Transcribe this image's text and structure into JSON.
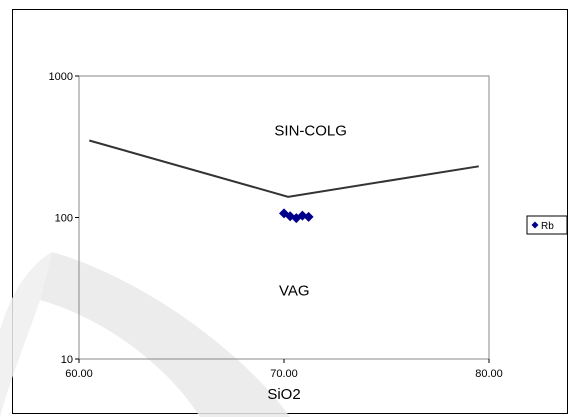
{
  "chart_data": {
    "type": "scatter",
    "xlabel": "SiO2",
    "ylabel": "",
    "xlim": [
      60,
      80
    ],
    "ylim": [
      10,
      1000
    ],
    "yscale": "log",
    "grid": false,
    "legend_position": "right",
    "x_ticks": [
      "60.00",
      "70.00",
      "80.00"
    ],
    "y_ticks": [
      "10",
      "100",
      "1000"
    ],
    "x_tick_values": [
      60,
      70,
      80
    ],
    "y_tick_values": [
      10,
      100,
      1000
    ],
    "series": [
      {
        "name": "Rb",
        "marker": "diamond",
        "color": "#00008B",
        "points": [
          {
            "x": 70.0,
            "y": 107
          },
          {
            "x": 70.3,
            "y": 102
          },
          {
            "x": 70.6,
            "y": 99
          },
          {
            "x": 70.9,
            "y": 103
          },
          {
            "x": 71.2,
            "y": 101
          }
        ]
      }
    ],
    "boundary_line": {
      "color": "#333333",
      "points": [
        {
          "x": 60.5,
          "y": 350
        },
        {
          "x": 70.2,
          "y": 140
        },
        {
          "x": 79.5,
          "y": 230
        }
      ]
    },
    "annotations": [
      {
        "text": "SIN-COLG",
        "x": 71.3,
        "y": 380
      },
      {
        "text": "VAG",
        "x": 70.5,
        "y": 28
      }
    ]
  }
}
